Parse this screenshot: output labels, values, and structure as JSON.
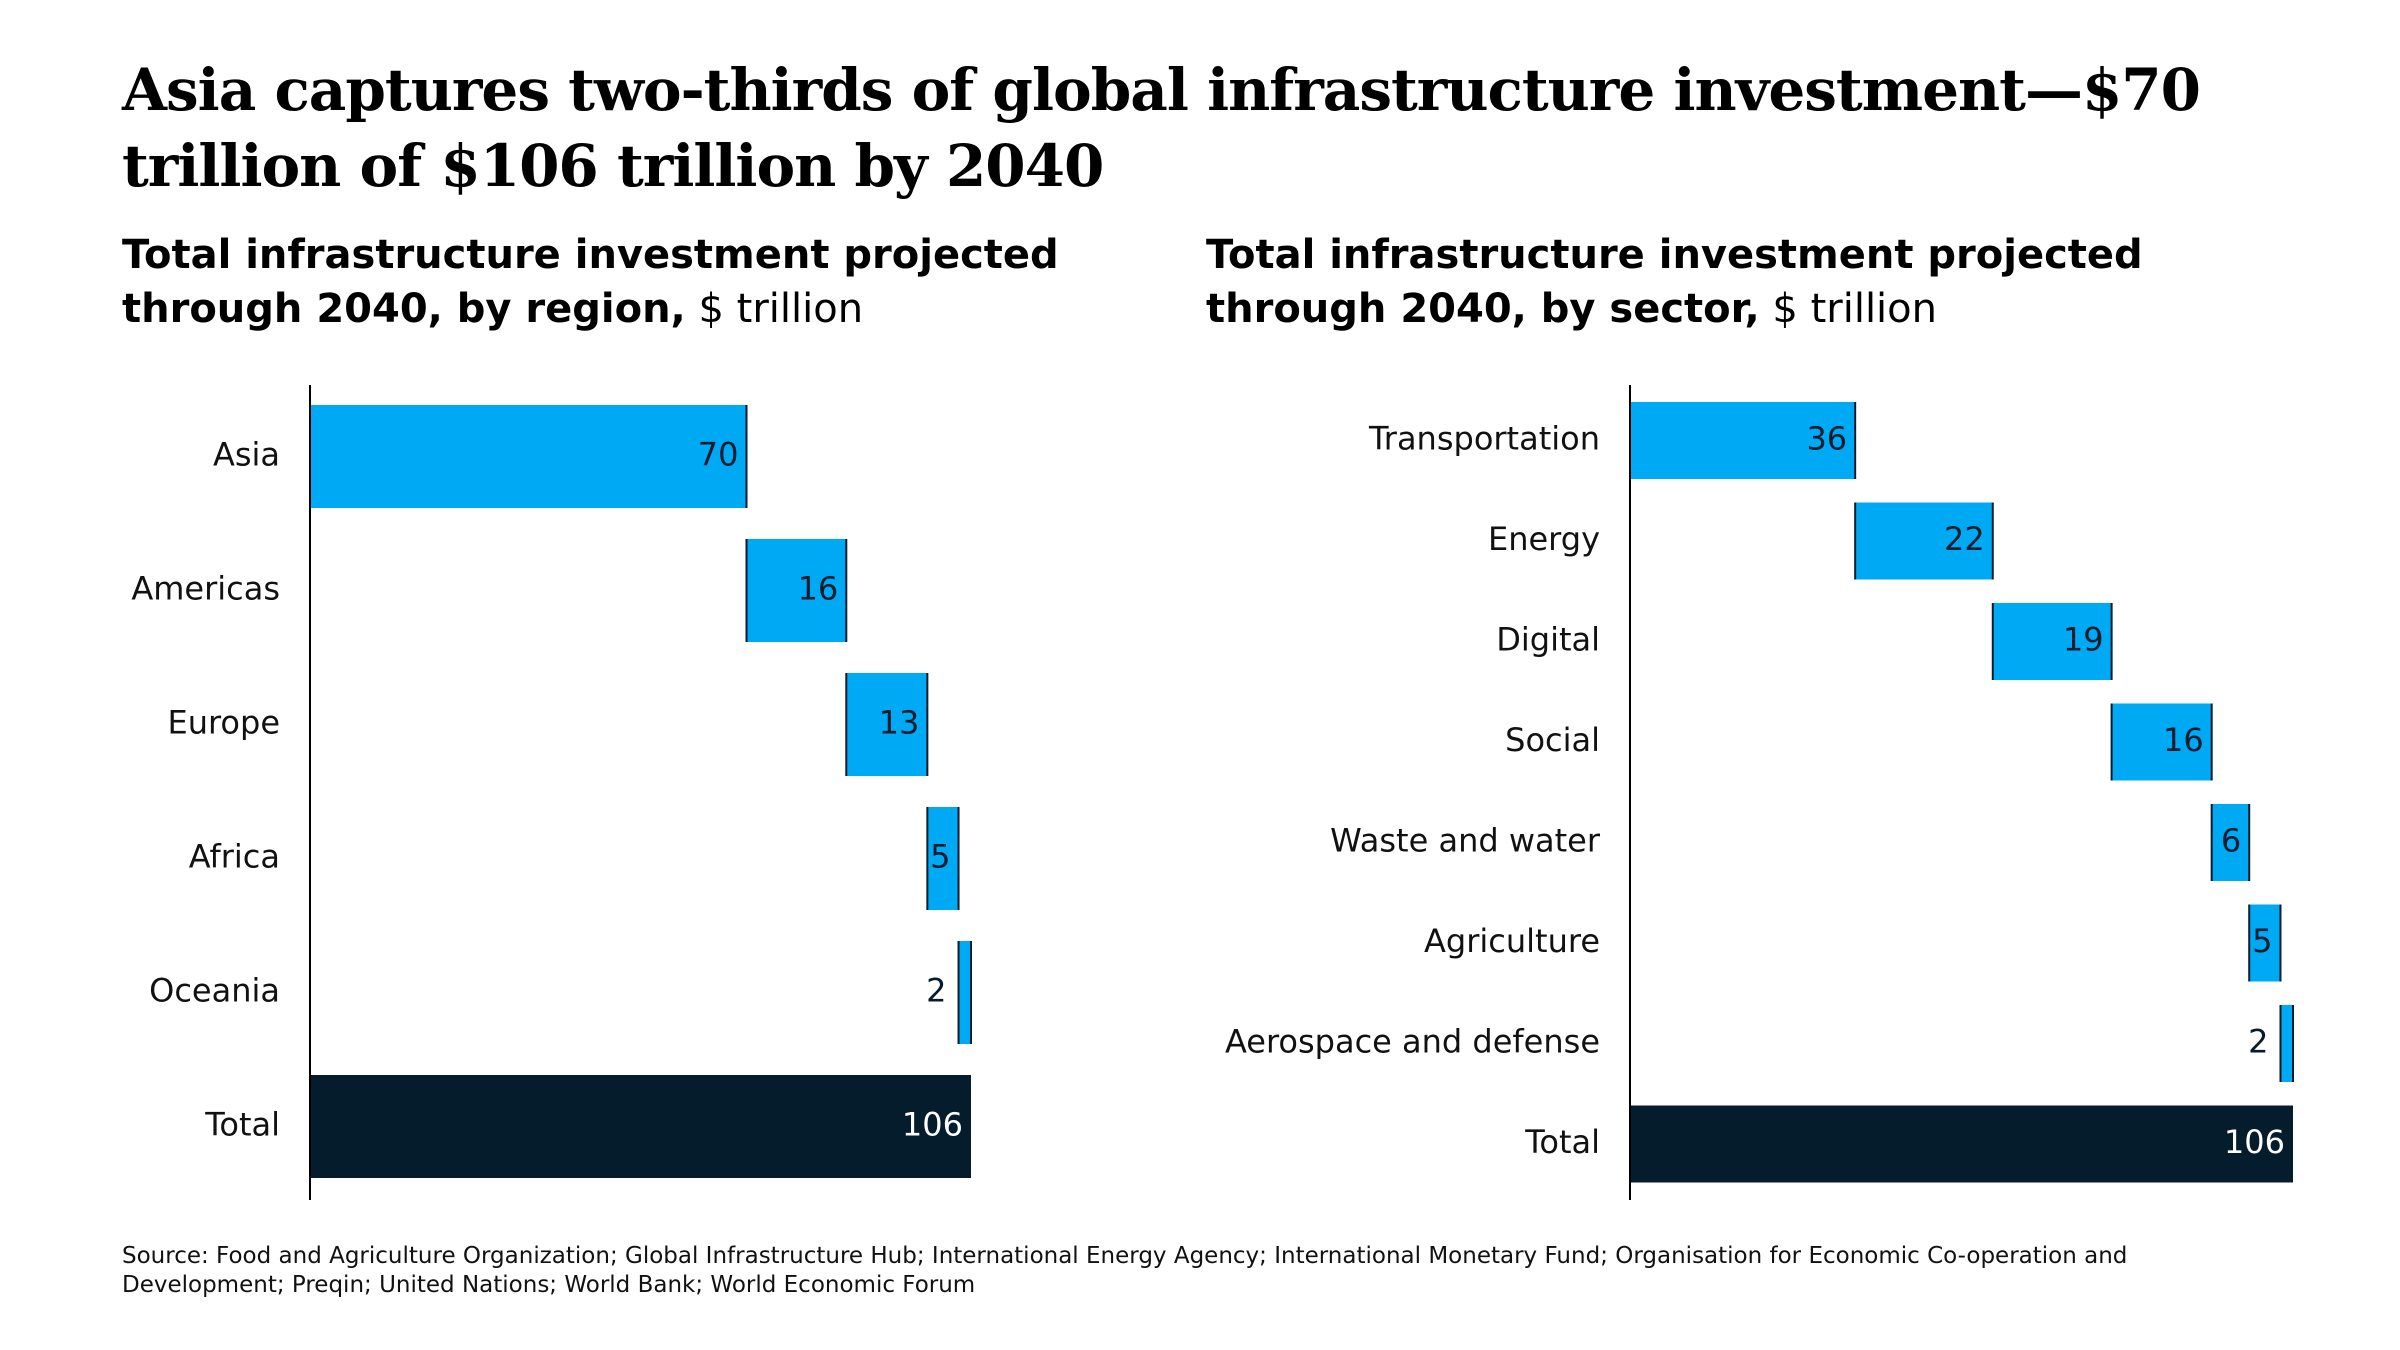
{
  "title": "Asia captures two-thirds of global infrastructure investment—$70 trillion of $106 trillion by 2040",
  "source": "Source: Food and Agriculture Organization; Global Infrastructure Hub; International Energy Agency; International Monetary Fund; Organisation for Economic Co-operation and Development; Preqin; United Nations; World Bank; World Economic Forum",
  "chart_data": [
    {
      "type": "waterfall",
      "title": "Total infrastructure investment projected through 2040, by region,",
      "unit": "$ trillion",
      "categories": [
        "Asia",
        "Americas",
        "Europe",
        "Africa",
        "Oceania"
      ],
      "values": [
        70,
        16,
        13,
        5,
        2
      ],
      "total_label": "Total",
      "total": 106,
      "color": "#00a9f4",
      "total_color": "#051c2c"
    },
    {
      "type": "waterfall",
      "title": "Total infrastructure investment projected through 2040, by sector,",
      "unit": "$ trillion",
      "categories": [
        "Transportation",
        "Energy",
        "Digital",
        "Social",
        "Waste and water",
        "Agriculture",
        "Aerospace and defense"
      ],
      "values": [
        36,
        22,
        19,
        16,
        6,
        5,
        2
      ],
      "total_label": "Total",
      "total": 106,
      "color": "#00a9f4",
      "total_color": "#051c2c"
    }
  ]
}
